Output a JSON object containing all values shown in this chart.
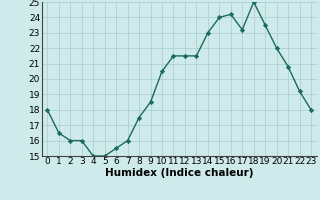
{
  "x": [
    0,
    1,
    2,
    3,
    4,
    5,
    6,
    7,
    8,
    9,
    10,
    11,
    12,
    13,
    14,
    15,
    16,
    17,
    18,
    19,
    20,
    21,
    22,
    23
  ],
  "y": [
    18,
    16.5,
    16,
    16,
    15,
    15,
    15.5,
    16,
    17.5,
    18.5,
    20.5,
    21.5,
    21.5,
    21.5,
    23,
    24,
    24.2,
    23.2,
    25,
    23.5,
    22,
    20.8,
    19.2,
    18
  ],
  "xlabel": "Humidex (Indice chaleur)",
  "xlim": [
    -0.5,
    23.5
  ],
  "ylim": [
    15,
    25
  ],
  "yticks": [
    15,
    16,
    17,
    18,
    19,
    20,
    21,
    22,
    23,
    24,
    25
  ],
  "xticks": [
    0,
    1,
    2,
    3,
    4,
    5,
    6,
    7,
    8,
    9,
    10,
    11,
    12,
    13,
    14,
    15,
    16,
    17,
    18,
    19,
    20,
    21,
    22,
    23
  ],
  "line_color": "#1a6b5a",
  "marker": "D",
  "marker_size": 2.2,
  "bg_color": "#ceeaea",
  "grid_color": "#aed0d0",
  "xlabel_fontsize": 7.5,
  "tick_fontsize": 6.5
}
